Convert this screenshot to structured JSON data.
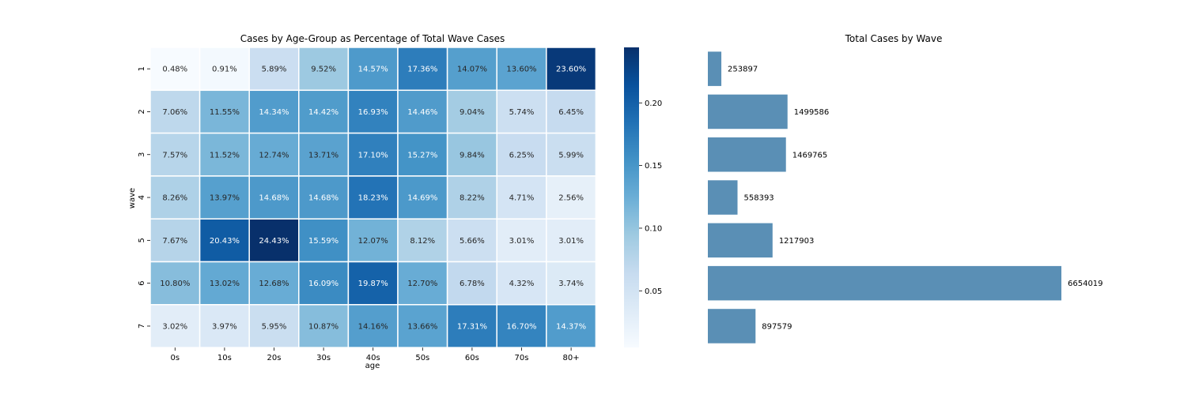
{
  "chart_data": [
    {
      "type": "heatmap",
      "title": "Cases by Age-Group as Percentage of Total Wave Cases",
      "xlabel": "age",
      "ylabel": "wave",
      "x_categories": [
        "0s",
        "10s",
        "20s",
        "30s",
        "40s",
        "50s",
        "60s",
        "70s",
        "80+"
      ],
      "y_categories": [
        "1",
        "2",
        "3",
        "4",
        "5",
        "6",
        "7"
      ],
      "values": [
        [
          0.0048,
          0.0091,
          0.0589,
          0.0952,
          0.1457,
          0.1736,
          0.1407,
          0.136,
          0.236
        ],
        [
          0.0706,
          0.1155,
          0.1434,
          0.1442,
          0.1693,
          0.1446,
          0.0904,
          0.0574,
          0.0645
        ],
        [
          0.0757,
          0.1152,
          0.1274,
          0.1371,
          0.171,
          0.1527,
          0.0984,
          0.0625,
          0.0599
        ],
        [
          0.0826,
          0.1397,
          0.1468,
          0.1468,
          0.1823,
          0.1469,
          0.0822,
          0.0471,
          0.0256
        ],
        [
          0.0767,
          0.2043,
          0.2443,
          0.1559,
          0.1207,
          0.0812,
          0.0566,
          0.0301,
          0.0301
        ],
        [
          0.108,
          0.1302,
          0.1268,
          0.1609,
          0.1987,
          0.127,
          0.0678,
          0.0432,
          0.0374
        ],
        [
          0.0302,
          0.0397,
          0.0595,
          0.1087,
          0.1416,
          0.1366,
          0.1731,
          0.167,
          0.1437
        ]
      ],
      "cell_labels": [
        [
          "0.48%",
          "0.91%",
          "5.89%",
          "9.52%",
          "14.57%",
          "17.36%",
          "14.07%",
          "13.60%",
          "23.60%"
        ],
        [
          "7.06%",
          "11.55%",
          "14.34%",
          "14.42%",
          "16.93%",
          "14.46%",
          "9.04%",
          "5.74%",
          "6.45%"
        ],
        [
          "7.57%",
          "11.52%",
          "12.74%",
          "13.71%",
          "17.10%",
          "15.27%",
          "9.84%",
          "6.25%",
          "5.99%"
        ],
        [
          "8.26%",
          "13.97%",
          "14.68%",
          "14.68%",
          "18.23%",
          "14.69%",
          "8.22%",
          "4.71%",
          "2.56%"
        ],
        [
          "7.67%",
          "20.43%",
          "24.43%",
          "15.59%",
          "12.07%",
          "8.12%",
          "5.66%",
          "3.01%",
          "3.01%"
        ],
        [
          "10.80%",
          "13.02%",
          "12.68%",
          "16.09%",
          "19.87%",
          "12.70%",
          "6.78%",
          "4.32%",
          "3.74%"
        ],
        [
          "3.02%",
          "3.97%",
          "5.95%",
          "10.87%",
          "14.16%",
          "13.66%",
          "17.31%",
          "16.70%",
          "14.37%"
        ]
      ],
      "colorbar": {
        "ticks": [
          0.05,
          0.1,
          0.15,
          0.2
        ],
        "tick_labels": [
          "0.05",
          "0.10",
          "0.15",
          "0.20"
        ],
        "range": [
          0.0048,
          0.2443
        ],
        "colormap": "Blues"
      }
    },
    {
      "type": "bar",
      "orientation": "horizontal",
      "title": "Total Cases by Wave",
      "categories": [
        "1",
        "2",
        "3",
        "4",
        "5",
        "6",
        "7"
      ],
      "values": [
        253897,
        1499586,
        1469765,
        558393,
        1217903,
        6654019,
        897579
      ],
      "value_labels": [
        "253897",
        "1499586",
        "1469765",
        "558393",
        "1217903",
        "6654019",
        "897579"
      ],
      "bar_color": "#5a8fb5",
      "axes_visible": false
    }
  ]
}
